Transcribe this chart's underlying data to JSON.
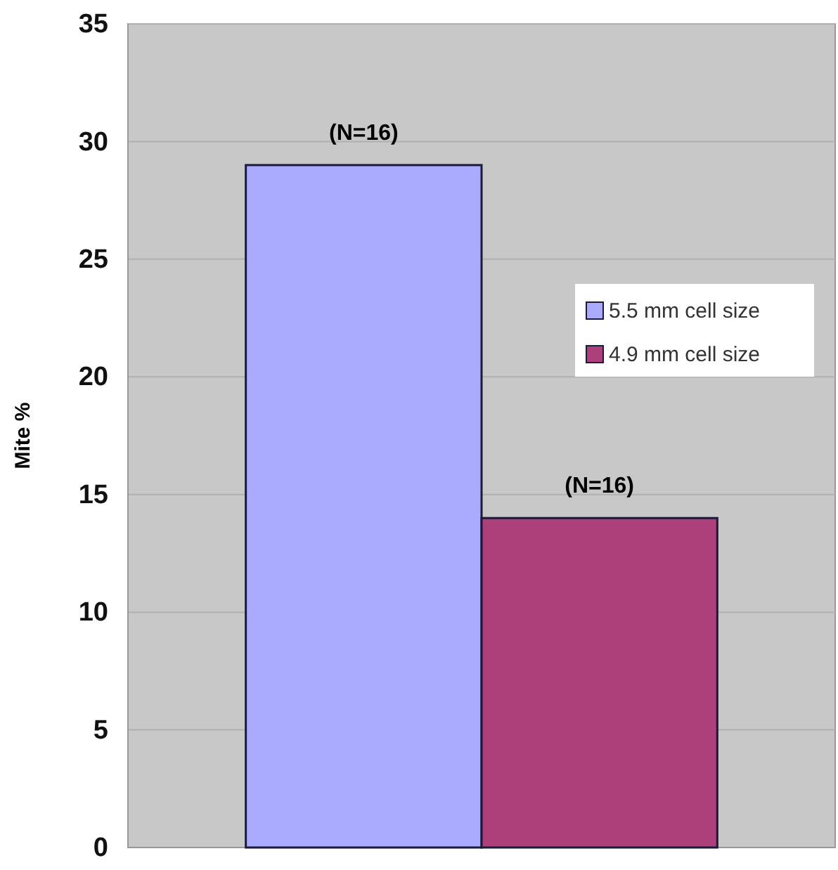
{
  "chart_data": {
    "type": "bar",
    "ylabel": "Mite %",
    "categories": [
      null
    ],
    "series": [
      {
        "name": "5.5 mm cell size",
        "color": "#aaaaff",
        "values": [
          29
        ]
      },
      {
        "name": "4.9 mm cell size",
        "color": "#ad3f7a",
        "values": [
          14
        ]
      }
    ],
    "ylim": [
      0,
      35
    ],
    "yticks": [
      0,
      5,
      10,
      15,
      20,
      25,
      30,
      35
    ],
    "grid": "y",
    "legend": "right",
    "annotations": [
      {
        "text": "(N=16)",
        "y": 29
      },
      {
        "text": "(N=16)",
        "y": 14
      }
    ]
  }
}
